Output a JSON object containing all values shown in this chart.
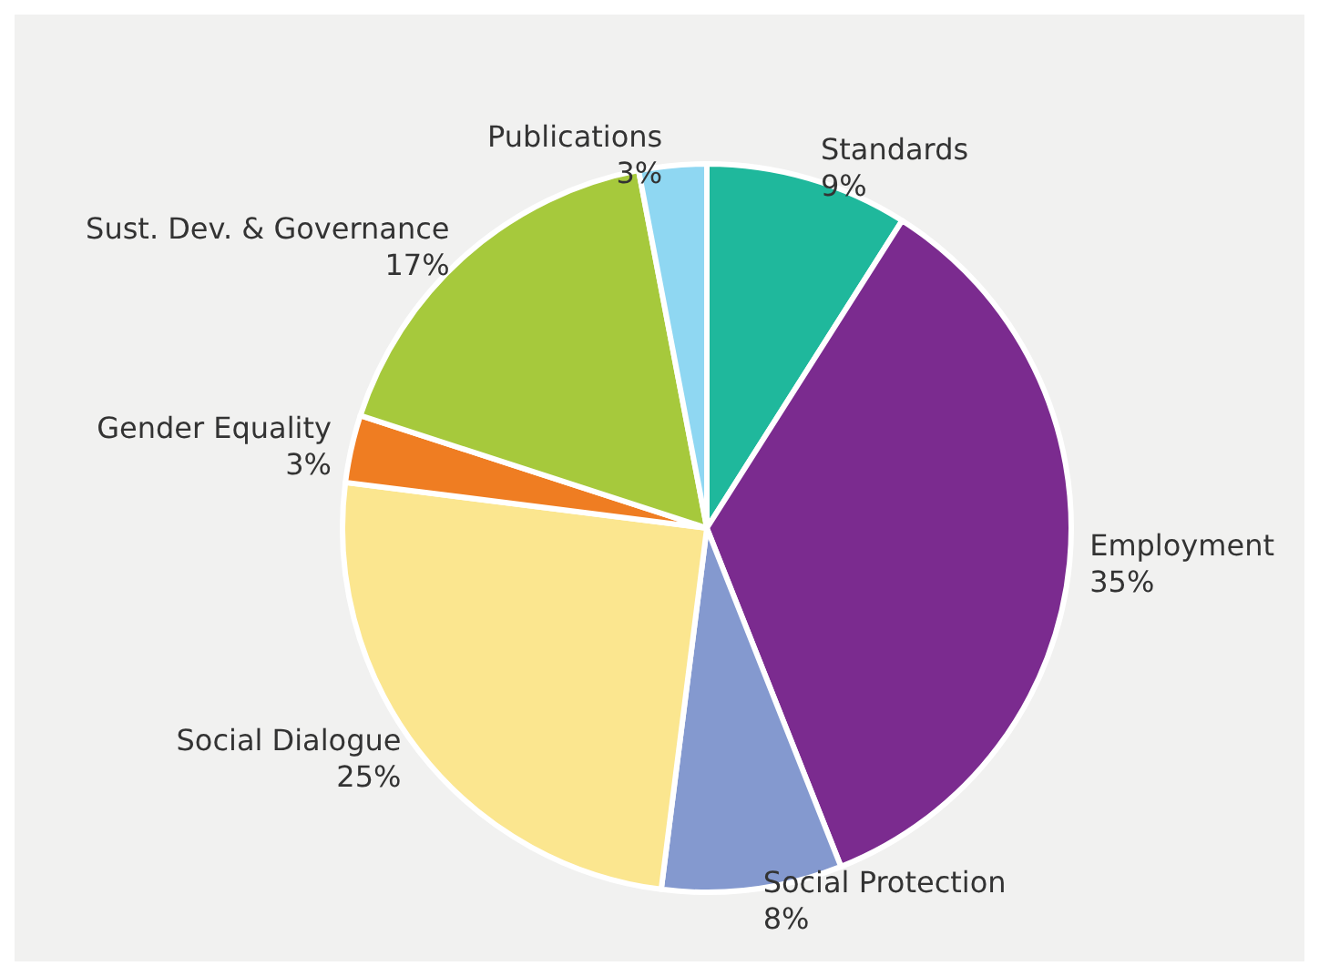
{
  "chart_data": {
    "type": "pie",
    "categories": [
      "Standards",
      "Employment",
      "Social Protection",
      "Social Dialogue",
      "Gender Equality",
      "Sust. Dev. & Governance",
      "Publications"
    ],
    "values": [
      9,
      35,
      8,
      25,
      3,
      17,
      3
    ],
    "value_labels": [
      "9%",
      "35%",
      "8%",
      "25%",
      "3%",
      "17%",
      "3%"
    ],
    "colors": [
      "#1fb89c",
      "#7b2b8f",
      "#8499cf",
      "#fbe68f",
      "#ef7d22",
      "#a6c93c",
      "#8fd7f2"
    ]
  }
}
